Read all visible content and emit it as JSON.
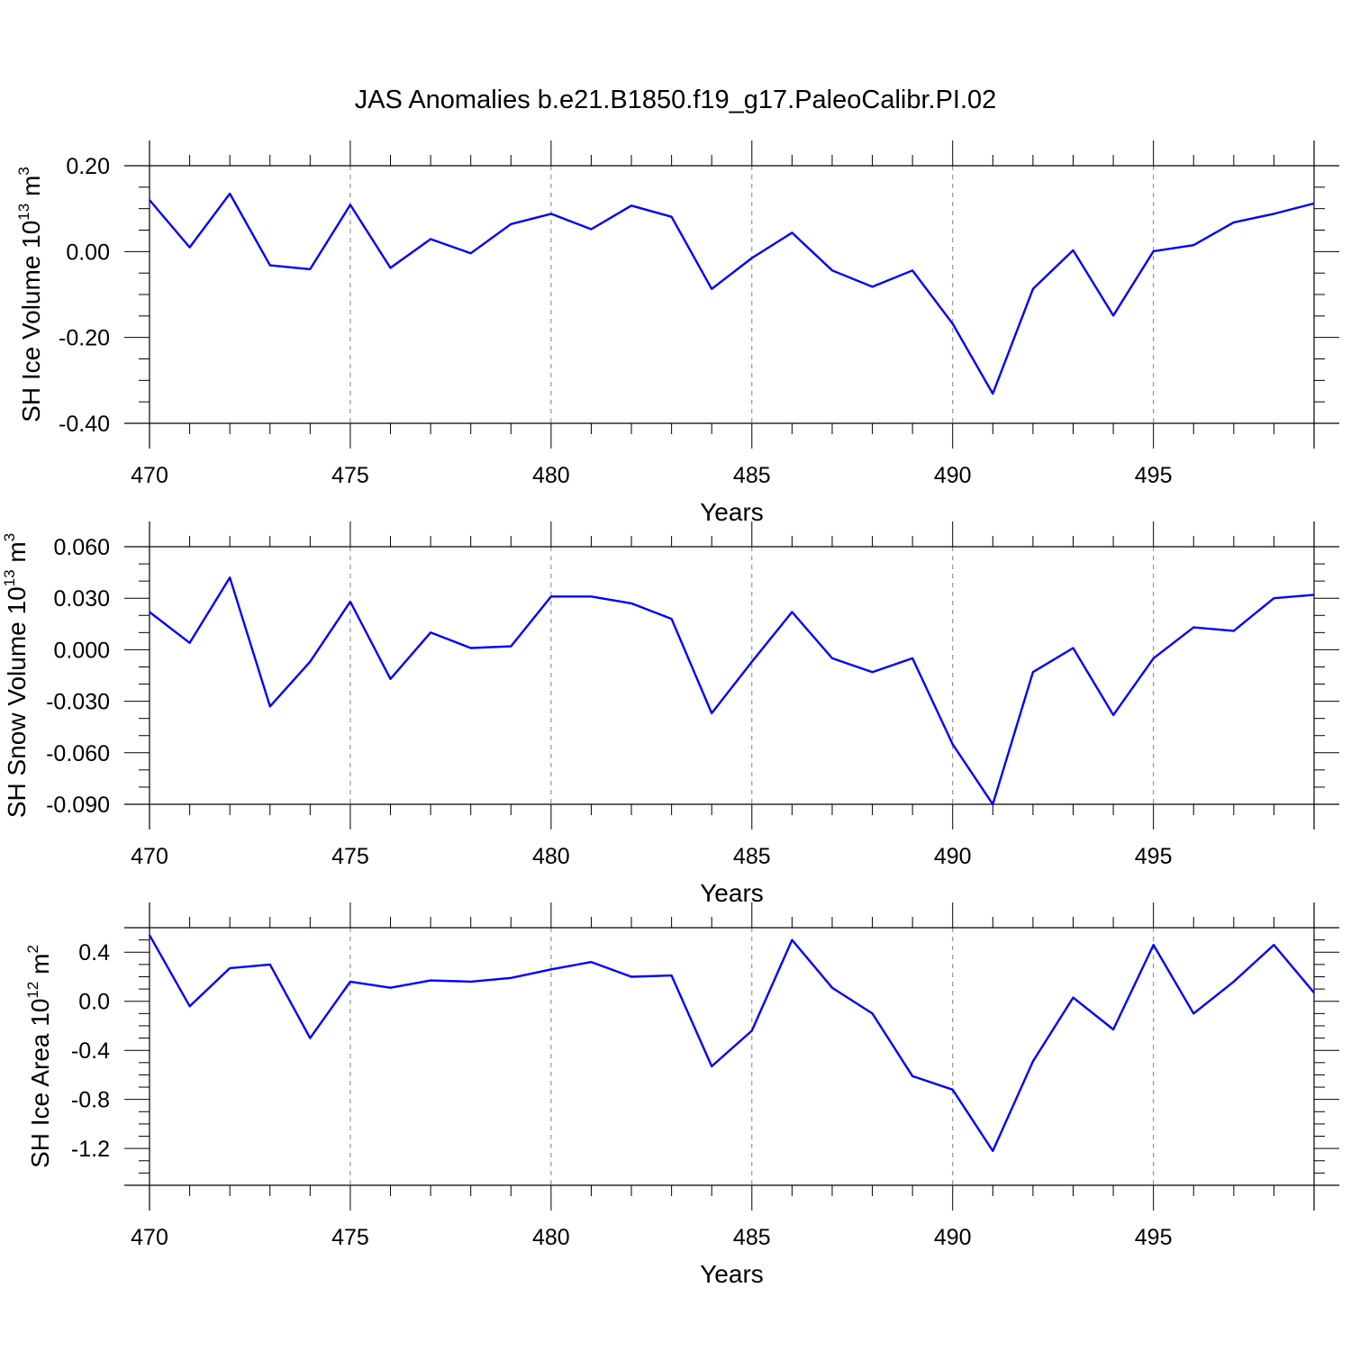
{
  "title": "JAS Anomalies b.e21.B1850.f19_g17.PaleoCalibr.PI.02",
  "colors": {
    "line": "#0000ff",
    "axes": "#000000",
    "grid": "#808080"
  },
  "chart_data": [
    {
      "type": "line",
      "xlabel": "Years",
      "ylabel": {
        "main": "SH Ice Volume 10",
        "exp": "13",
        "unit": " m",
        "unit_exp": "3"
      },
      "xlim": [
        470,
        499
      ],
      "ylim": [
        -0.4,
        0.2
      ],
      "xticks": [
        470,
        475,
        480,
        485,
        490,
        495
      ],
      "xtick_labels": [
        "470",
        "475",
        "480",
        "485",
        "490",
        "495"
      ],
      "yticks": [
        -0.4,
        -0.2,
        0.0,
        0.2
      ],
      "ytick_labels": [
        "-0.40",
        "-0.20",
        "0.00",
        "0.20"
      ],
      "yminor": 0.05,
      "series": [
        {
          "name": "SH Ice Volume",
          "x": [
            470,
            471,
            472,
            473,
            474,
            475,
            476,
            477,
            478,
            479,
            480,
            481,
            482,
            483,
            484,
            485,
            486,
            487,
            488,
            489,
            490,
            491,
            492,
            493,
            494,
            495,
            496,
            497,
            498,
            499
          ],
          "values": [
            0.12,
            0.01,
            0.135,
            -0.032,
            -0.041,
            0.109,
            -0.038,
            0.029,
            -0.004,
            0.064,
            0.088,
            0.052,
            0.107,
            0.081,
            -0.087,
            -0.015,
            0.044,
            -0.044,
            -0.082,
            -0.044,
            -0.168,
            -0.331,
            -0.087,
            0.003,
            -0.149,
            0.001,
            0.015,
            0.068,
            0.088,
            0.112
          ]
        }
      ]
    },
    {
      "type": "line",
      "xlabel": "Years",
      "ylabel": {
        "main": "SH Snow Volume 10",
        "exp": "13",
        "unit": " m",
        "unit_exp": "3"
      },
      "xlim": [
        470,
        499
      ],
      "ylim": [
        -0.09,
        0.06
      ],
      "xticks": [
        470,
        475,
        480,
        485,
        490,
        495
      ],
      "xtick_labels": [
        "470",
        "475",
        "480",
        "485",
        "490",
        "495"
      ],
      "yticks": [
        -0.09,
        -0.06,
        -0.03,
        0.0,
        0.03,
        0.06
      ],
      "ytick_labels": [
        "-0.090",
        "-0.060",
        "-0.030",
        "0.000",
        "0.030",
        "0.060"
      ],
      "yminor": 0.01,
      "series": [
        {
          "name": "SH Snow Volume",
          "x": [
            470,
            471,
            472,
            473,
            474,
            475,
            476,
            477,
            478,
            479,
            480,
            481,
            482,
            483,
            484,
            485,
            486,
            487,
            488,
            489,
            490,
            491,
            492,
            493,
            494,
            495,
            496,
            497,
            498,
            499
          ],
          "values": [
            0.022,
            0.004,
            0.042,
            -0.033,
            -0.007,
            0.028,
            -0.017,
            0.01,
            0.001,
            0.002,
            0.031,
            0.031,
            0.027,
            0.018,
            -0.037,
            -0.007,
            0.022,
            -0.005,
            -0.013,
            -0.005,
            -0.055,
            -0.09,
            -0.013,
            0.001,
            -0.038,
            -0.005,
            0.013,
            0.011,
            0.03,
            0.032
          ]
        }
      ]
    },
    {
      "type": "line",
      "xlabel": "Years",
      "ylabel": {
        "main": "SH Ice Area 10",
        "exp": "12",
        "unit": " m",
        "unit_exp": "2"
      },
      "xlim": [
        470,
        499
      ],
      "ylim": [
        -1.5,
        0.6
      ],
      "xticks": [
        470,
        475,
        480,
        485,
        490,
        495
      ],
      "xtick_labels": [
        "470",
        "475",
        "480",
        "485",
        "490",
        "495"
      ],
      "yticks": [
        -1.2,
        -0.8,
        -0.4,
        0.0,
        0.4
      ],
      "ytick_labels": [
        "-1.2",
        "-0.8",
        "-0.4",
        "0.0",
        "0.4"
      ],
      "yminor": 0.1,
      "series": [
        {
          "name": "SH Ice Area",
          "x": [
            470,
            471,
            472,
            473,
            474,
            475,
            476,
            477,
            478,
            479,
            480,
            481,
            482,
            483,
            484,
            485,
            486,
            487,
            488,
            489,
            490,
            491,
            492,
            493,
            494,
            495,
            496,
            497,
            498,
            499
          ],
          "values": [
            0.54,
            -0.04,
            0.27,
            0.3,
            -0.3,
            0.16,
            0.11,
            0.17,
            0.16,
            0.19,
            0.26,
            0.32,
            0.2,
            0.21,
            -0.53,
            -0.24,
            0.5,
            0.11,
            -0.1,
            -0.61,
            -0.72,
            -1.22,
            -0.49,
            0.03,
            -0.23,
            0.46,
            -0.1,
            0.16,
            0.46,
            0.07
          ]
        }
      ]
    }
  ]
}
